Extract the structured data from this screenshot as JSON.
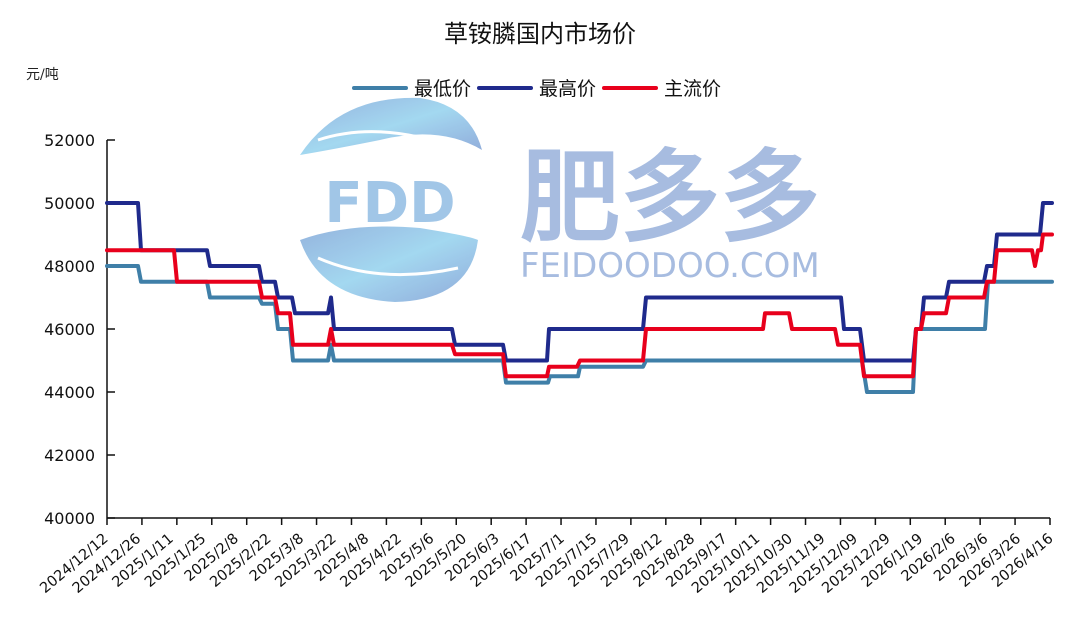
{
  "chart_data": {
    "type": "line",
    "title": "草铵膦国内市场价",
    "ylabel": "元/吨",
    "xlabel": "",
    "ylim": [
      40000,
      52000
    ],
    "yticks": [
      40000,
      42000,
      44000,
      46000,
      48000,
      50000,
      52000
    ],
    "grid": false,
    "legend_position": "top",
    "categories": [
      "2024/12/12",
      "2024/12/26",
      "2025/1/11",
      "2025/1/25",
      "2025/2/8",
      "2025/2/22",
      "2025/3/8",
      "2025/3/22",
      "2025/4/8",
      "2025/4/22",
      "2025/5/6",
      "2025/5/20",
      "2025/6/3",
      "2025/6/17",
      "2025/7/1",
      "2025/7/15",
      "2025/7/29",
      "2025/8/12",
      "2025/8/28",
      "2025/9/17",
      "2025/10/11",
      "2025/10/30",
      "2025/11/19",
      "2025/12/09",
      "2025/12/29",
      "2026/1/19",
      "2026/2/6",
      "2026/3/6",
      "2026/3/26",
      "2026/4/16"
    ],
    "series": [
      {
        "name": "最低价",
        "color": "#3f7fa8",
        "step_points": [
          [
            107,
            48000
          ],
          [
            138,
            48000
          ],
          [
            141,
            47500
          ],
          [
            207,
            47500
          ],
          [
            210,
            47000
          ],
          [
            259,
            47000
          ],
          [
            262,
            46800
          ],
          [
            275,
            46800
          ],
          [
            278,
            46000
          ],
          [
            290,
            46000
          ],
          [
            293,
            45000
          ],
          [
            328,
            45000
          ],
          [
            331,
            45500
          ],
          [
            334,
            45000
          ],
          [
            503,
            45000
          ],
          [
            506,
            44300
          ],
          [
            548,
            44300
          ],
          [
            550,
            44500
          ],
          [
            578,
            44500
          ],
          [
            580,
            44800
          ],
          [
            643,
            44800
          ],
          [
            646,
            45000
          ],
          [
            862,
            45000
          ],
          [
            867,
            44000
          ],
          [
            913,
            44000
          ],
          [
            916,
            46000
          ],
          [
            985,
            46000
          ],
          [
            988,
            47500
          ],
          [
            1052,
            47500
          ]
        ],
        "values": [
          48000,
          47500,
          47500,
          47000,
          47000,
          46800,
          45000,
          45000,
          45000,
          45000,
          45000,
          45000,
          45000,
          44300,
          44500,
          44800,
          44800,
          45000,
          45000,
          45000,
          45000,
          45000,
          45000,
          45000,
          44000,
          46000,
          46000,
          46000,
          47500,
          47500
        ]
      },
      {
        "name": "最高价",
        "color": "#1f2a8c",
        "step_points": [
          [
            107,
            50000
          ],
          [
            138,
            50000
          ],
          [
            141,
            48500
          ],
          [
            207,
            48500
          ],
          [
            210,
            48000
          ],
          [
            259,
            48000
          ],
          [
            262,
            47500
          ],
          [
            275,
            47500
          ],
          [
            278,
            47000
          ],
          [
            292,
            47000
          ],
          [
            295,
            46500
          ],
          [
            328,
            46500
          ],
          [
            331,
            47000
          ],
          [
            334,
            46000
          ],
          [
            452,
            46000
          ],
          [
            455,
            45500
          ],
          [
            503,
            45500
          ],
          [
            506,
            45000
          ],
          [
            547,
            45000
          ],
          [
            549,
            46000
          ],
          [
            643,
            46000
          ],
          [
            646,
            47000
          ],
          [
            841,
            47000
          ],
          [
            844,
            46000
          ],
          [
            860,
            46000
          ],
          [
            864,
            45000
          ],
          [
            913,
            45000
          ],
          [
            916,
            46000
          ],
          [
            921,
            46000
          ],
          [
            924,
            47000
          ],
          [
            946,
            47000
          ],
          [
            949,
            47500
          ],
          [
            984,
            47500
          ],
          [
            987,
            48000
          ],
          [
            994,
            48000
          ],
          [
            997,
            49000
          ],
          [
            1040,
            49000
          ],
          [
            1043,
            50000
          ],
          [
            1052,
            50000
          ]
        ],
        "values": [
          50000,
          48500,
          48500,
          48500,
          48000,
          47500,
          46500,
          46000,
          46000,
          46000,
          46000,
          45500,
          45500,
          45000,
          46000,
          46000,
          46000,
          47000,
          47000,
          47000,
          47000,
          47000,
          47000,
          46000,
          45000,
          46000,
          47500,
          48000,
          49000,
          50000
        ]
      },
      {
        "name": "主流价",
        "color": "#e8001c",
        "step_points": [
          [
            107,
            48500
          ],
          [
            174,
            48500
          ],
          [
            177,
            47500
          ],
          [
            259,
            47500
          ],
          [
            262,
            47000
          ],
          [
            275,
            47000
          ],
          [
            278,
            46500
          ],
          [
            290,
            46500
          ],
          [
            293,
            45500
          ],
          [
            328,
            45500
          ],
          [
            331,
            46000
          ],
          [
            334,
            45500
          ],
          [
            452,
            45500
          ],
          [
            455,
            45200
          ],
          [
            503,
            45200
          ],
          [
            506,
            44500
          ],
          [
            547,
            44500
          ],
          [
            549,
            44800
          ],
          [
            577,
            44800
          ],
          [
            580,
            45000
          ],
          [
            643,
            45000
          ],
          [
            646,
            46000
          ],
          [
            763,
            46000
          ],
          [
            765,
            46500
          ],
          [
            789,
            46500
          ],
          [
            792,
            46000
          ],
          [
            835,
            46000
          ],
          [
            838,
            45500
          ],
          [
            860,
            45500
          ],
          [
            864,
            44500
          ],
          [
            913,
            44500
          ],
          [
            916,
            46000
          ],
          [
            921,
            46000
          ],
          [
            924,
            46500
          ],
          [
            946,
            46500
          ],
          [
            949,
            47000
          ],
          [
            984,
            47000
          ],
          [
            987,
            47500
          ],
          [
            994,
            47500
          ],
          [
            997,
            48500
          ],
          [
            1032,
            48500
          ],
          [
            1035,
            48000
          ],
          [
            1038,
            48500
          ],
          [
            1041,
            48500
          ],
          [
            1043,
            49000
          ],
          [
            1052,
            49000
          ]
        ],
        "values": [
          48500,
          48500,
          47500,
          47500,
          47500,
          47000,
          45500,
          46000,
          45500,
          45500,
          45500,
          45200,
          45200,
          44500,
          44800,
          45000,
          45000,
          46000,
          46000,
          46000,
          46500,
          46000,
          45500,
          45500,
          44500,
          46500,
          47000,
          47500,
          48500,
          49000
        ]
      }
    ]
  },
  "header": {
    "title": "草铵膦国内市场价",
    "unit": "元/吨"
  },
  "legend": [
    {
      "label": "最低价",
      "color": "#3f7fa8"
    },
    {
      "label": "最高价",
      "color": "#1f2a8c"
    },
    {
      "label": "主流价",
      "color": "#e8001c"
    }
  ],
  "watermark": {
    "logo_text": "FDD",
    "brand_cn": "肥多多",
    "brand_en": "FEIDOODOO.COM"
  }
}
